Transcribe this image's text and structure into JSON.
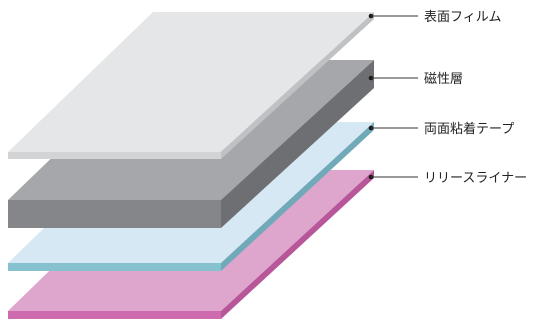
{
  "layers": [
    {
      "id": "surface-film",
      "label": "表面フィルム",
      "colors": {
        "top": "#e5e6e8",
        "front": "#d3d4d6",
        "side": "#c0c1c4"
      }
    },
    {
      "id": "magnetic-layer",
      "label": "磁性層",
      "colors": {
        "top": "#a6a7aa",
        "front": "#858689",
        "side": "#6e6f72"
      }
    },
    {
      "id": "double-sided-tape",
      "label": "両面粘着テープ",
      "colors": {
        "top": "#d6e8f3",
        "front": "#86c1cf",
        "side": "#70a9b8"
      }
    },
    {
      "id": "release-liner",
      "label": "リリースライナー",
      "colors": {
        "top": "#dfa6cd",
        "front": "#cd6bae",
        "side": "#b75699"
      }
    }
  ],
  "leader_color": "#333333"
}
